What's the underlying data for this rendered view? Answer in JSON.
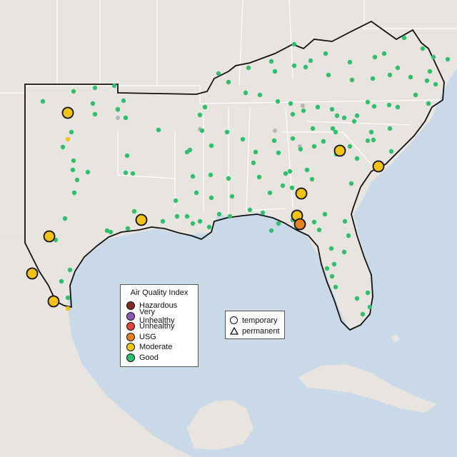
{
  "map": {
    "colors": {
      "water": "#c9d9e8",
      "land": "#e8e4df",
      "region_outline": "#111111",
      "state_border": "#ffffff"
    }
  },
  "legend": {
    "title": "Air Quality Index",
    "categories": [
      {
        "label": "Hazardous",
        "color": "#7e2b22"
      },
      {
        "label": "Very Unhealthy",
        "color": "#8e58b3"
      },
      {
        "label": "Unhealthy",
        "color": "#e0473a"
      },
      {
        "label": "USG",
        "color": "#e58122"
      },
      {
        "label": "Moderate",
        "color": "#f1c319"
      },
      {
        "label": "Good",
        "color": "#30c06d"
      }
    ]
  },
  "monitor_types": {
    "temporary": "temporary",
    "permanent": "permanent"
  }
}
